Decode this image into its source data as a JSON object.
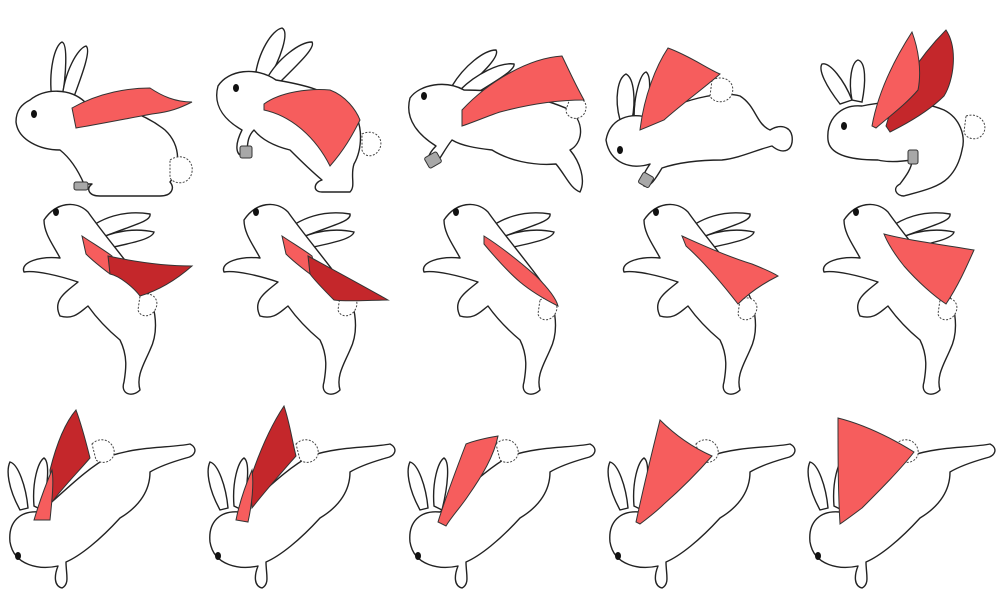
{
  "sprite_sheet": {
    "background": "#ffffff",
    "colors": {
      "cape_light": "#f65d5d",
      "cape_dark": "#c4272b",
      "outline": "#222222",
      "body": "#ffffff",
      "cuff": "#a8a8a8"
    },
    "rows": [
      {
        "animation": "run",
        "frames": [
          {
            "pose": "stand",
            "cape": "light",
            "cuff": true
          },
          {
            "pose": "crouch",
            "cape": "light",
            "cuff": true
          },
          {
            "pose": "leap",
            "cape": "light",
            "cuff": true
          },
          {
            "pose": "dive",
            "cape": "light",
            "cuff": true
          },
          {
            "pose": "land",
            "cape": "two-tone",
            "cuff": true
          }
        ]
      },
      {
        "animation": "jump-up",
        "frames": [
          {
            "pose": "rise",
            "cape": "dark"
          },
          {
            "pose": "rise",
            "cape": "dark"
          },
          {
            "pose": "rise",
            "cape": "light"
          },
          {
            "pose": "rise",
            "cape": "light"
          },
          {
            "pose": "rise",
            "cape": "light"
          }
        ]
      },
      {
        "animation": "fall",
        "frames": [
          {
            "pose": "fall",
            "cape": "dark"
          },
          {
            "pose": "fall",
            "cape": "dark"
          },
          {
            "pose": "fall",
            "cape": "light"
          },
          {
            "pose": "fall",
            "cape": "light"
          },
          {
            "pose": "fall",
            "cape": "light"
          }
        ]
      }
    ]
  }
}
